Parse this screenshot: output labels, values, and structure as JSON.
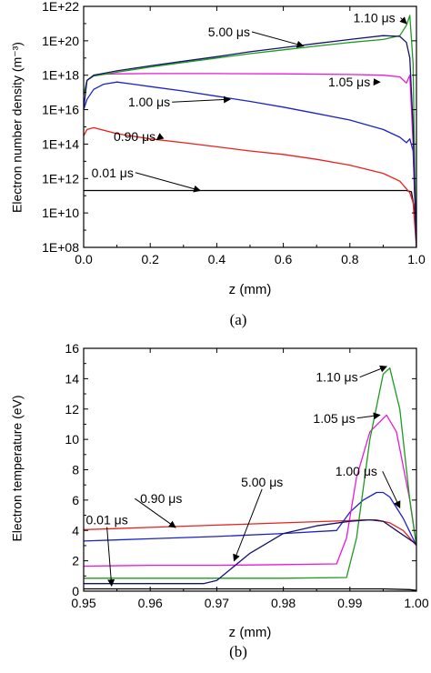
{
  "colors": {
    "0.01": "#000000",
    "0.90": "#e8211c",
    "1.00": "#1b22c8",
    "1.05": "#e81ad6",
    "1.10": "#1f9a1f",
    "5.00": "#14146e"
  },
  "chart_data": [
    {
      "type": "line",
      "caption": "(a)",
      "xlabel": "z (mm)",
      "ylabel": "Electron number density (m⁻³)",
      "yscale": "log",
      "xlim": [
        0.0,
        1.0
      ],
      "ylim": [
        100000000.0,
        1e+22
      ],
      "xticks": [
        0.0,
        0.2,
        0.4,
        0.6,
        0.8,
        1.0
      ],
      "xtick_labels": [
        "0.0",
        "0.2",
        "0.4",
        "0.6",
        "0.8",
        "1.0"
      ],
      "yticks": [
        100000000.0,
        10000000000.0,
        1000000000000.0,
        100000000000000.0,
        1e+16,
        1e+18,
        1e+20,
        1e+22
      ],
      "ytick_labels": [
        "1E+08",
        "1E+10",
        "1E+12",
        "1E+14",
        "1E+16",
        "1E+18",
        "1E+20",
        "1E+22"
      ],
      "grid": false,
      "series": [
        {
          "key": "0.01",
          "label": "0.01 μs",
          "x": [
            0.0,
            0.1,
            0.3,
            0.5,
            0.7,
            0.9,
            0.97,
            0.985,
            0.995,
            1.0
          ],
          "y": [
            200000000000.0,
            200000000000.0,
            200000000000.0,
            200000000000.0,
            200000000000.0,
            200000000000.0,
            200000000000.0,
            170000000000.0,
            10000000000.0,
            100000000.0
          ]
        },
        {
          "key": "0.90",
          "label": "0.90 μs",
          "x": [
            0.0,
            0.01,
            0.03,
            0.1,
            0.2,
            0.3,
            0.4,
            0.5,
            0.6,
            0.7,
            0.8,
            0.9,
            0.95,
            0.98,
            0.99,
            1.0
          ],
          "y": [
            300000000000000.0,
            700000000000000.0,
            900000000000000.0,
            400000000000000.0,
            200000000000000.0,
            120000000000000.0,
            70000000000000.0,
            40000000000000.0,
            25000000000000.0,
            13000000000000.0,
            6000000000000.0,
            2000000000000.0,
            700000000000.0,
            150000000000.0,
            40000000000.0,
            100000000.0
          ]
        },
        {
          "key": "1.00",
          "label": "1.00 μs",
          "x": [
            0.0,
            0.01,
            0.03,
            0.06,
            0.1,
            0.15,
            0.2,
            0.3,
            0.4,
            0.5,
            0.6,
            0.7,
            0.8,
            0.9,
            0.95,
            0.97,
            0.98,
            0.99,
            1.0
          ],
          "y": [
            1e+16,
            4e+16,
            1.5e+17,
            3e+17,
            4e+17,
            3e+17,
            2.2e+17,
            1.2e+17,
            6e+16,
            3e+16,
            1.4e+16,
            6000000000000000.0,
            2500000000000000.0,
            700000000000000.0,
            250000000000000.0,
            120000000000000.0,
            200000000000000.0,
            40000000000000.0,
            100000000.0
          ]
        },
        {
          "key": "1.05",
          "label": "1.05 μs",
          "x": [
            0.0,
            0.01,
            0.03,
            0.06,
            0.1,
            0.2,
            0.4,
            0.6,
            0.8,
            0.9,
            0.95,
            0.97,
            0.98,
            0.99,
            1.0
          ],
          "y": [
            8e+16,
            5e+17,
            1e+18,
            1.15e+18,
            1.2e+18,
            1.25e+18,
            1.25e+18,
            1.2e+18,
            1.1e+18,
            1e+18,
            8e+17,
            3.5e+17,
            1e+18,
            100000000000000.0,
            100000000.0
          ]
        },
        {
          "key": "1.10",
          "label": "1.10 μs",
          "x": [
            0.0,
            0.01,
            0.03,
            0.06,
            0.1,
            0.2,
            0.3,
            0.4,
            0.5,
            0.6,
            0.7,
            0.8,
            0.9,
            0.95,
            0.97,
            0.98,
            0.99,
            0.995,
            1.0
          ],
          "y": [
            7e+16,
            5e+17,
            9e+17,
            1.1e+18,
            1.5e+18,
            3e+18,
            5.5e+18,
            1e+19,
            1.8e+19,
            3e+19,
            5e+19,
            8e+19,
            1.2e+20,
            2e+20,
            8e+20,
            3e+21,
            5e+18,
            1000000000000.0,
            100000000.0
          ]
        },
        {
          "key": "5.00",
          "label": "5.00 μs",
          "x": [
            0.0,
            0.01,
            0.03,
            0.06,
            0.1,
            0.2,
            0.3,
            0.4,
            0.5,
            0.6,
            0.7,
            0.8,
            0.9,
            0.95,
            0.97,
            0.98,
            0.99,
            0.995,
            1.0
          ],
          "y": [
            1.2e+16,
            5e+17,
            1e+18,
            1.3e+18,
            1.8e+18,
            3.5e+18,
            6.5e+18,
            1.2e+19,
            2.3e+19,
            4e+19,
            7e+19,
            1.2e+20,
            2e+20,
            1.8e+20,
            8e+19,
            1e+19,
            1000000000000000.0,
            100000000000.0,
            100000000.0
          ]
        }
      ],
      "annotations": [
        {
          "key": "1.10",
          "text": "1.10 μs"
        },
        {
          "key": "5.00",
          "text": "5.00 μs"
        },
        {
          "key": "1.05",
          "text": "1.05 μs"
        },
        {
          "key": "1.00",
          "text": "1.00 μs"
        },
        {
          "key": "0.90",
          "text": "0.90 μs"
        },
        {
          "key": "0.01",
          "text": "0.01 μs"
        }
      ]
    },
    {
      "type": "line",
      "caption": "(b)",
      "xlabel": "z (mm)",
      "ylabel": "Electron temperature (eV)",
      "yscale": "linear",
      "xlim": [
        0.95,
        1.0
      ],
      "ylim": [
        0,
        16
      ],
      "xticks": [
        0.95,
        0.96,
        0.97,
        0.98,
        0.99,
        1.0
      ],
      "xtick_labels": [
        "0.95",
        "0.96",
        "0.97",
        "0.98",
        "0.99",
        "1.00"
      ],
      "yticks": [
        0,
        2,
        4,
        6,
        8,
        10,
        12,
        14,
        16
      ],
      "ytick_labels": [
        "0",
        "2",
        "4",
        "6",
        "8",
        "10",
        "12",
        "14",
        "16"
      ],
      "grid": false,
      "series": [
        {
          "key": "0.01",
          "label": "0.01 μs",
          "x": [
            0.95,
            0.97,
            0.99,
            0.995,
            0.999,
            1.0
          ],
          "y": [
            0.15,
            0.15,
            0.15,
            0.15,
            0.1,
            0.05
          ]
        },
        {
          "key": "0.90",
          "label": "0.90 μs",
          "x": [
            0.95,
            0.96,
            0.97,
            0.98,
            0.99,
            0.992,
            0.994,
            0.996,
            0.998,
            1.0
          ],
          "y": [
            4.05,
            4.2,
            4.35,
            4.5,
            4.65,
            4.7,
            4.7,
            4.5,
            4.0,
            3.0
          ]
        },
        {
          "key": "1.00",
          "label": "1.00 μs",
          "x": [
            0.95,
            0.96,
            0.97,
            0.98,
            0.988,
            0.99,
            0.992,
            0.994,
            0.995,
            0.996,
            0.998,
            1.0
          ],
          "y": [
            3.3,
            3.45,
            3.6,
            3.8,
            4.0,
            5.2,
            6.0,
            6.5,
            6.5,
            6.2,
            4.8,
            3.0
          ]
        },
        {
          "key": "1.05",
          "label": "1.05 μs",
          "x": [
            0.95,
            0.96,
            0.97,
            0.98,
            0.988,
            0.9895,
            0.991,
            0.993,
            0.9955,
            0.997,
            0.999,
            1.0
          ],
          "y": [
            1.65,
            1.7,
            1.7,
            1.75,
            1.8,
            3.5,
            7.5,
            10.5,
            11.6,
            10.5,
            6.0,
            3.0
          ]
        },
        {
          "key": "1.10",
          "label": "1.10 μs",
          "x": [
            0.95,
            0.96,
            0.97,
            0.98,
            0.9895,
            0.991,
            0.993,
            0.995,
            0.996,
            0.9975,
            0.999,
            1.0
          ],
          "y": [
            0.85,
            0.85,
            0.85,
            0.85,
            0.9,
            3.5,
            10.0,
            14.3,
            14.7,
            12.0,
            6.0,
            3.0
          ]
        },
        {
          "key": "5.00",
          "label": "5.00 μs",
          "x": [
            0.95,
            0.96,
            0.968,
            0.97,
            0.975,
            0.98,
            0.985,
            0.99,
            0.993,
            0.995,
            0.997,
            1.0
          ],
          "y": [
            0.5,
            0.5,
            0.5,
            0.7,
            2.5,
            3.8,
            4.3,
            4.6,
            4.7,
            4.6,
            4.0,
            3.1
          ]
        }
      ],
      "annotations": [
        {
          "key": "1.10",
          "text": "1.10 μs"
        },
        {
          "key": "1.05",
          "text": "1.05 μs"
        },
        {
          "key": "1.00",
          "text": "1.00 μs"
        },
        {
          "key": "0.90",
          "text": "0.90 μs"
        },
        {
          "key": "5.00",
          "text": "5.00 μs"
        },
        {
          "key": "0.01",
          "text": "0.01 μs"
        }
      ]
    }
  ]
}
